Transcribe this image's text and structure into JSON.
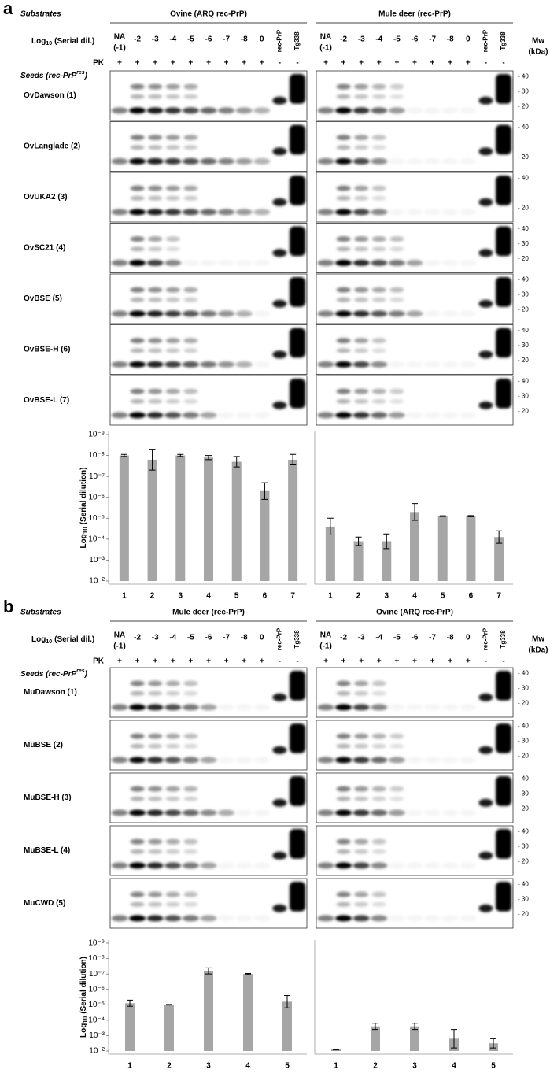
{
  "figure": {
    "panels": [
      {
        "letter": "a",
        "substrates_label": "Substrates",
        "dilution_label": {
          "base": "Log",
          "sub": "10",
          "rest": "(Serial dil.)"
        },
        "pk_label": "PK",
        "seeds_label": {
          "main": "Seeds (rec-PrP",
          "sup": "res",
          "close": ")"
        },
        "mw_label": [
          "Mw",
          "(kDa)"
        ],
        "groups": [
          {
            "substrate": "Ovine (ARQ rec-PrP)",
            "na_lane": [
              "NA",
              "(-1)"
            ],
            "lanes": [
              "-2",
              "-3",
              "-4",
              "-5",
              "-6",
              "-7",
              "-8",
              "0"
            ],
            "controls": [
              "rec-PrP",
              "Tg338"
            ],
            "pk": [
              "+",
              "+",
              "+",
              "+",
              "+",
              "+",
              "+",
              "+",
              "+",
              "-",
              "-"
            ]
          },
          {
            "substrate": "Mule deer (rec-PrP)",
            "na_lane": [
              "NA",
              "(-1)"
            ],
            "lanes": [
              "-2",
              "-3",
              "-4",
              "-5",
              "-6",
              "-7",
              "-8",
              "0"
            ],
            "controls": [
              "rec-PrP",
              "Tg338"
            ],
            "pk": [
              "+",
              "+",
              "+",
              "+",
              "+",
              "+",
              "+",
              "+",
              "+",
              "-",
              "-"
            ]
          }
        ],
        "rows": [
          {
            "seed": "OvDawson (1)",
            "mw": [
              "- 40",
              "- 30",
              "- 20"
            ]
          },
          {
            "seed": "OvLanglade (2)",
            "mw": [
              "- 40",
              "- 20"
            ]
          },
          {
            "seed": "OvUKA2  (3)",
            "mw": [
              "- 40",
              "- 20"
            ]
          },
          {
            "seed": "OvSC21 (4)",
            "mw": [
              "- 40",
              "- 30",
              "- 20"
            ]
          },
          {
            "seed": "OvBSE (5)",
            "mw": [
              "- 40",
              "- 30",
              "- 20"
            ]
          },
          {
            "seed": "OvBSE-H (6)",
            "mw": [
              "- 40",
              "- 30",
              "- 20"
            ]
          },
          {
            "seed": "OvBSE-L (7)",
            "mw": [
              "- 40",
              "- 30",
              "- 20"
            ]
          }
        ]
      },
      {
        "letter": "b",
        "substrates_label": "Substrates",
        "dilution_label": {
          "base": "Log",
          "sub": "10",
          "rest": "(Serial dil.)"
        },
        "pk_label": "PK",
        "seeds_label": {
          "main": "Seeds (rec-PrP",
          "sup": "res",
          "close": ")"
        },
        "mw_label": [
          "Mw",
          "(kDa)"
        ],
        "groups": [
          {
            "substrate": "Mule deer (rec-PrP)",
            "na_lane": [
              "NA",
              "(-1)"
            ],
            "lanes": [
              "-2",
              "-3",
              "-4",
              "-5",
              "-6",
              "-7",
              "-8",
              "0"
            ],
            "controls": [
              "rec-PrP",
              "Tg338"
            ],
            "pk": [
              "+",
              "+",
              "+",
              "+",
              "+",
              "+",
              "+",
              "+",
              "+",
              "-",
              "-"
            ]
          },
          {
            "substrate": "Ovine (ARQ rec-PrP)",
            "na_lane": [
              "NA",
              "(-1)"
            ],
            "lanes": [
              "-2",
              "-3",
              "-4",
              "-5",
              "-6",
              "-7",
              "-8",
              "0"
            ],
            "controls": [
              "rec-PrP",
              "Tg338"
            ],
            "pk": [
              "+",
              "+",
              "+",
              "+",
              "+",
              "+",
              "+",
              "+",
              "+",
              "-",
              "-"
            ]
          }
        ],
        "rows": [
          {
            "seed": "MuDawson (1)",
            "mw": [
              "- 40",
              "- 30",
              "- 20"
            ]
          },
          {
            "seed": "MuBSE (2)",
            "mw": [
              "- 40",
              "- 30",
              "- 20"
            ]
          },
          {
            "seed": "MuBSE-H (3)",
            "mw": [
              "- 40",
              "- 30",
              "- 20"
            ]
          },
          {
            "seed": "MuBSE-L (4)",
            "mw": [
              "- 40",
              "- 30",
              "- 20"
            ]
          },
          {
            "seed": "MuCWD (5)",
            "mw": [
              "- 40",
              "- 30",
              "- 20"
            ]
          }
        ]
      }
    ]
  },
  "chart_data": [
    {
      "type": "bar",
      "ylabel": {
        "base": "Log",
        "sub": "10",
        "rest": "(Serial dilution)"
      },
      "categories": [
        "1",
        "2",
        "3",
        "4",
        "5",
        "6",
        "7"
      ],
      "values": [
        -8,
        -7.8,
        -8,
        -7.9,
        -7.7,
        -6.3,
        -7.8
      ],
      "errors": [
        0.05,
        0.5,
        0.05,
        0.1,
        0.25,
        0.4,
        0.25
      ],
      "color": "#a6a6a6",
      "ylim": [
        -2,
        -9
      ],
      "yticks": [
        {
          "value": -9,
          "label": "10⁻⁹"
        },
        {
          "value": -8,
          "label": "10⁻⁸"
        },
        {
          "value": -7,
          "label": "10⁻⁷"
        },
        {
          "value": -6,
          "label": "10⁻⁶"
        },
        {
          "value": -5,
          "label": "10⁻⁵"
        },
        {
          "value": -4,
          "label": "10⁻⁴"
        },
        {
          "value": -3,
          "label": "10⁻³"
        },
        {
          "value": -2,
          "label": "10⁻²"
        }
      ]
    },
    {
      "type": "bar",
      "categories": [
        "1",
        "2",
        "3",
        "4",
        "5",
        "6",
        "7"
      ],
      "values": [
        -4.6,
        -3.9,
        -3.9,
        -5.3,
        -5.1,
        -5.1,
        -4.1
      ],
      "errors": [
        0.4,
        0.2,
        0.35,
        0.4,
        0.02,
        0.03,
        0.3
      ],
      "color": "#a6a6a6",
      "ylim": [
        -2,
        -9
      ]
    },
    {
      "type": "bar",
      "ylabel": {
        "base": "Log",
        "sub": "10",
        "rest": "(Serial dilution)"
      },
      "categories": [
        "1",
        "2",
        "3",
        "4",
        "5"
      ],
      "values": [
        -5.1,
        -5,
        -7.2,
        -7,
        -5.2
      ],
      "errors": [
        0.2,
        0.02,
        0.2,
        0.03,
        0.4
      ],
      "color": "#a6a6a6",
      "ylim": [
        -2,
        -9
      ],
      "yticks": [
        {
          "value": -9,
          "label": "10⁻⁹"
        },
        {
          "value": -8,
          "label": "10⁻⁸"
        },
        {
          "value": -7,
          "label": "10⁻⁷"
        },
        {
          "value": -6,
          "label": "10⁻⁶"
        },
        {
          "value": -5,
          "label": "10⁻⁵"
        },
        {
          "value": -4,
          "label": "10⁻⁴"
        },
        {
          "value": -3,
          "label": "10⁻³"
        },
        {
          "value": -2,
          "label": "10⁻²"
        }
      ]
    },
    {
      "type": "bar",
      "categories": [
        "1",
        "2",
        "3",
        "4",
        "5"
      ],
      "values": [
        -2.1,
        -3.6,
        -3.6,
        -2.8,
        -2.5
      ],
      "errors": [
        0.03,
        0.2,
        0.2,
        0.6,
        0.3
      ],
      "color": "#a6a6a6",
      "ylim": [
        -2,
        -9
      ]
    }
  ]
}
